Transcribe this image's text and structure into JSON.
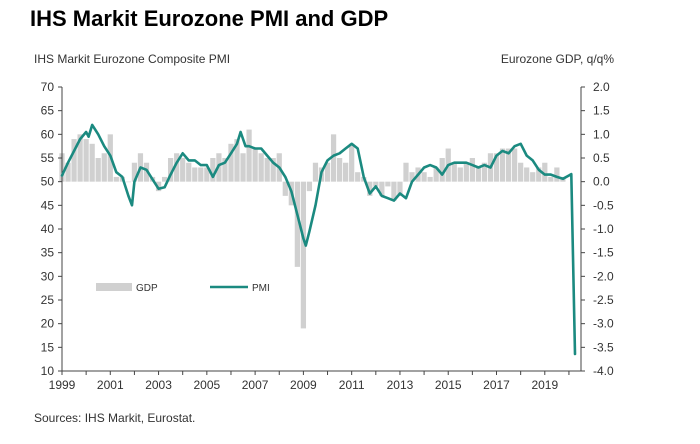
{
  "title": "IHS Markit Eurozone PMI and GDP",
  "source": "Sources: IHS Markit, Eurostat.",
  "colors": {
    "pmi": "#1b8a80",
    "gdp": "#d0d0d0",
    "axis": "#444444"
  },
  "chart_data": {
    "type": "bar+line",
    "left_axis_label": "IHS Markit Eurozone Composite PMI",
    "right_axis_label": "Eurozone GDP, q/q%",
    "left_ylim": [
      10,
      70
    ],
    "left_ticks": [
      70,
      65,
      60,
      55,
      50,
      45,
      40,
      35,
      30,
      25,
      20,
      15,
      10
    ],
    "right_ylim": [
      -4.0,
      2.0
    ],
    "right_ticks": [
      "2.0",
      "1.5",
      "1.0",
      "0.5",
      "0.0",
      "-0.5",
      "-1.0",
      "-1.5",
      "-2.0",
      "-2.5",
      "-3.0",
      "-3.5",
      "-4.0"
    ],
    "x_range": [
      1999,
      2020.5
    ],
    "x_ticks": [
      "1999",
      "2001",
      "2003",
      "2005",
      "2007",
      "2009",
      "2011",
      "2013",
      "2015",
      "2017",
      "2019"
    ],
    "legend": [
      "GDP",
      "PMI"
    ],
    "legend_position": "lower-left",
    "series": [
      {
        "name": "GDP",
        "axis": "right",
        "style": "bar",
        "x": [
          1999.0,
          1999.25,
          1999.5,
          1999.75,
          2000.0,
          2000.25,
          2000.5,
          2000.75,
          2001.0,
          2001.25,
          2001.5,
          2001.75,
          2002.0,
          2002.25,
          2002.5,
          2002.75,
          2003.0,
          2003.25,
          2003.5,
          2003.75,
          2004.0,
          2004.25,
          2004.5,
          2004.75,
          2005.0,
          2005.25,
          2005.5,
          2005.75,
          2006.0,
          2006.25,
          2006.5,
          2006.75,
          2007.0,
          2007.25,
          2007.5,
          2007.75,
          2008.0,
          2008.25,
          2008.5,
          2008.75,
          2009.0,
          2009.25,
          2009.5,
          2009.75,
          2010.0,
          2010.25,
          2010.5,
          2010.75,
          2011.0,
          2011.25,
          2011.5,
          2011.75,
          2012.0,
          2012.25,
          2012.5,
          2012.75,
          2013.0,
          2013.25,
          2013.5,
          2013.75,
          2014.0,
          2014.25,
          2014.5,
          2014.75,
          2015.0,
          2015.25,
          2015.5,
          2015.75,
          2016.0,
          2016.25,
          2016.5,
          2016.75,
          2017.0,
          2017.25,
          2017.5,
          2017.75,
          2018.0,
          2018.25,
          2018.5,
          2018.75,
          2019.0,
          2019.25,
          2019.5,
          2019.75
        ],
        "values": [
          0.6,
          0.4,
          0.9,
          1.0,
          0.9,
          0.8,
          0.5,
          0.6,
          1.0,
          0.1,
          0.1,
          0.0,
          0.4,
          0.6,
          0.4,
          0.1,
          -0.2,
          0.1,
          0.5,
          0.6,
          0.5,
          0.4,
          0.3,
          0.3,
          0.3,
          0.5,
          0.6,
          0.5,
          0.8,
          0.9,
          0.6,
          1.1,
          0.7,
          0.6,
          0.5,
          0.5,
          0.6,
          -0.3,
          -0.5,
          -1.8,
          -3.1,
          -0.2,
          0.4,
          0.3,
          0.4,
          1.0,
          0.5,
          0.4,
          0.8,
          0.2,
          0.1,
          -0.3,
          -0.1,
          -0.3,
          -0.1,
          -0.4,
          -0.3,
          0.4,
          0.2,
          0.3,
          0.2,
          0.1,
          0.3,
          0.5,
          0.7,
          0.4,
          0.3,
          0.4,
          0.5,
          0.3,
          0.4,
          0.6,
          0.6,
          0.7,
          0.7,
          0.7,
          0.4,
          0.3,
          0.2,
          0.3,
          0.4,
          0.1,
          0.3,
          0.1
        ]
      },
      {
        "name": "PMI",
        "axis": "left",
        "style": "line",
        "x": [
          1999.0,
          1999.25,
          1999.5,
          1999.75,
          2000.0,
          2000.1,
          2000.25,
          2000.5,
          2000.75,
          2001.0,
          2001.25,
          2001.5,
          2001.75,
          2001.9,
          2002.0,
          2002.25,
          2002.5,
          2002.75,
          2003.0,
          2003.25,
          2003.5,
          2003.75,
          2004.0,
          2004.25,
          2004.5,
          2004.75,
          2005.0,
          2005.25,
          2005.5,
          2005.75,
          2006.0,
          2006.25,
          2006.4,
          2006.6,
          2006.75,
          2007.0,
          2007.25,
          2007.5,
          2007.75,
          2008.0,
          2008.25,
          2008.5,
          2008.75,
          2009.0,
          2009.1,
          2009.25,
          2009.5,
          2009.75,
          2010.0,
          2010.25,
          2010.5,
          2010.75,
          2011.0,
          2011.25,
          2011.5,
          2011.75,
          2012.0,
          2012.25,
          2012.5,
          2012.75,
          2013.0,
          2013.25,
          2013.5,
          2013.75,
          2014.0,
          2014.25,
          2014.5,
          2014.75,
          2015.0,
          2015.25,
          2015.5,
          2015.75,
          2016.0,
          2016.25,
          2016.5,
          2016.75,
          2017.0,
          2017.25,
          2017.5,
          2017.75,
          2018.0,
          2018.25,
          2018.5,
          2018.75,
          2019.0,
          2019.25,
          2019.5,
          2019.75,
          2020.0,
          2020.1,
          2020.25
        ],
        "values": [
          51.3,
          54.0,
          56.5,
          59.0,
          60.5,
          59.5,
          62.0,
          60.0,
          57.5,
          55.5,
          52.0,
          51.0,
          47.0,
          45.0,
          50.0,
          53.0,
          52.5,
          50.5,
          48.5,
          48.8,
          51.5,
          54.0,
          56.0,
          54.5,
          54.5,
          53.5,
          53.5,
          51.0,
          53.5,
          54.0,
          56.0,
          58.0,
          60.5,
          57.5,
          57.5,
          57.0,
          57.0,
          55.5,
          54.0,
          53.0,
          51.0,
          48.0,
          43.0,
          38.0,
          36.5,
          39.5,
          45.0,
          52.0,
          54.5,
          55.5,
          56.0,
          57.0,
          58.0,
          57.0,
          51.0,
          47.5,
          49.0,
          47.0,
          46.5,
          46.0,
          47.5,
          46.5,
          50.0,
          51.5,
          53.0,
          53.5,
          53.0,
          51.5,
          53.5,
          54.0,
          54.0,
          54.0,
          53.5,
          53.0,
          53.5,
          53.0,
          55.5,
          56.5,
          56.0,
          57.5,
          58.0,
          55.5,
          54.5,
          52.5,
          51.5,
          51.5,
          51.0,
          50.6,
          51.3,
          51.6,
          13.6
        ]
      }
    ]
  }
}
